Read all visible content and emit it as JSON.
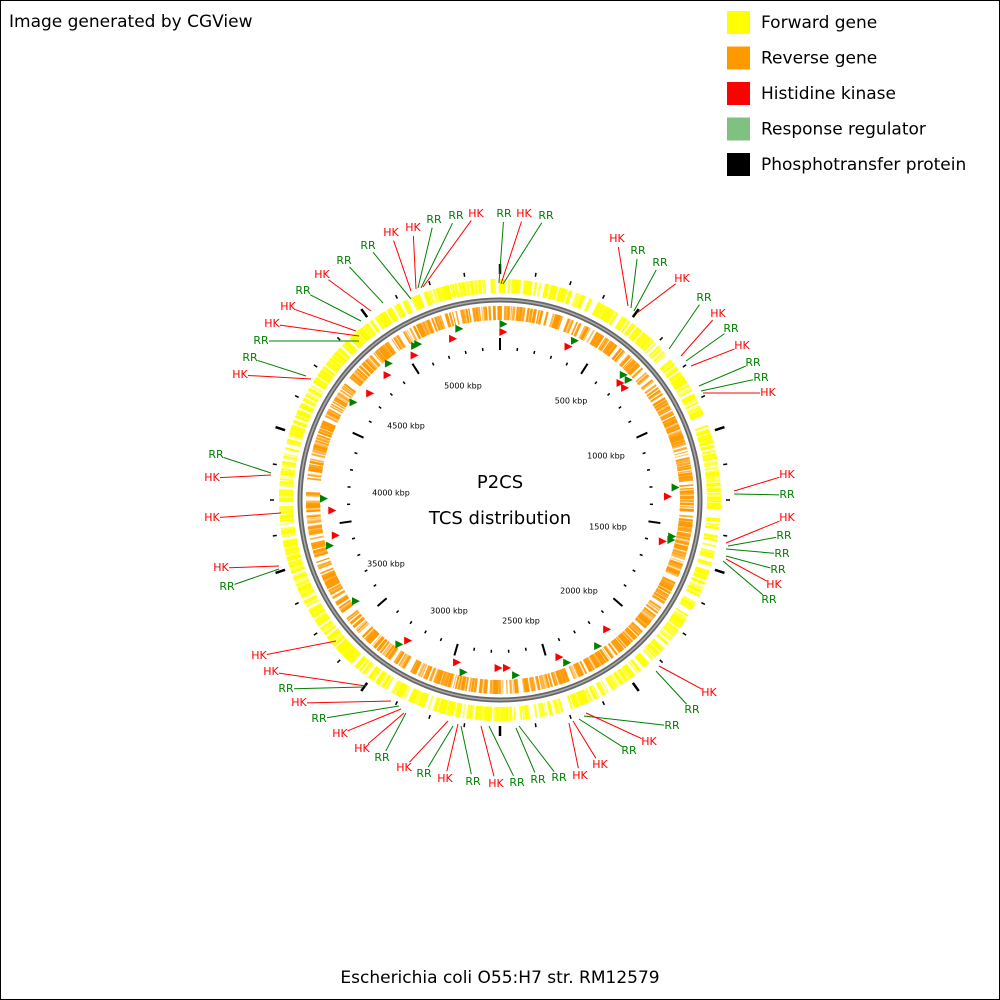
{
  "header": {
    "title": "Image generated by CGView"
  },
  "legend": [
    {
      "label": "Forward gene",
      "color": "#ffff00"
    },
    {
      "label": "Reverse gene",
      "color": "#ff9900"
    },
    {
      "label": "Histidine kinase",
      "color": "#ff0000"
    },
    {
      "label": "Response regulator",
      "color": "#80c080"
    },
    {
      "label": "Phosphotransfer protein",
      "color": "#000000"
    }
  ],
  "center": {
    "title": "P2CS",
    "subtitle": "TCS distribution"
  },
  "scale_labels": [
    "5000 kbp",
    "500 kbp",
    "1000 kbp",
    "1500 kbp",
    "2000 kbp",
    "2500 kbp",
    "3000 kbp",
    "3500 kbp",
    "4000 kbp",
    "4500 kbp"
  ],
  "feature_labels": [
    "HK",
    "HK",
    "RR",
    "RR",
    "HK",
    "RR",
    "HK",
    "RR",
    "RR",
    "RR",
    "HK",
    "RR",
    "HK",
    "HK",
    "RR",
    "RR",
    "HK",
    "HK",
    "RR",
    "RR",
    "HK",
    "RR",
    "HK",
    "RR",
    "HK",
    "RR",
    "RR",
    "HK",
    "HK",
    "RR",
    "HK",
    "RR",
    "RR",
    "RR",
    "HK",
    "RR",
    "RR",
    "HK",
    "RR",
    "HK",
    "RR",
    "HK",
    "HK",
    "RR",
    "RR",
    "RR",
    "HK",
    "RR",
    "HK",
    "RR",
    "HK",
    "RR",
    "HK",
    "HK",
    "RR",
    "HK",
    "RR",
    "HK",
    "HK",
    "RR",
    "HK",
    "HK",
    "HK",
    "RR"
  ],
  "footer": "Escherichia coli O55:H7 str. RM12579"
}
